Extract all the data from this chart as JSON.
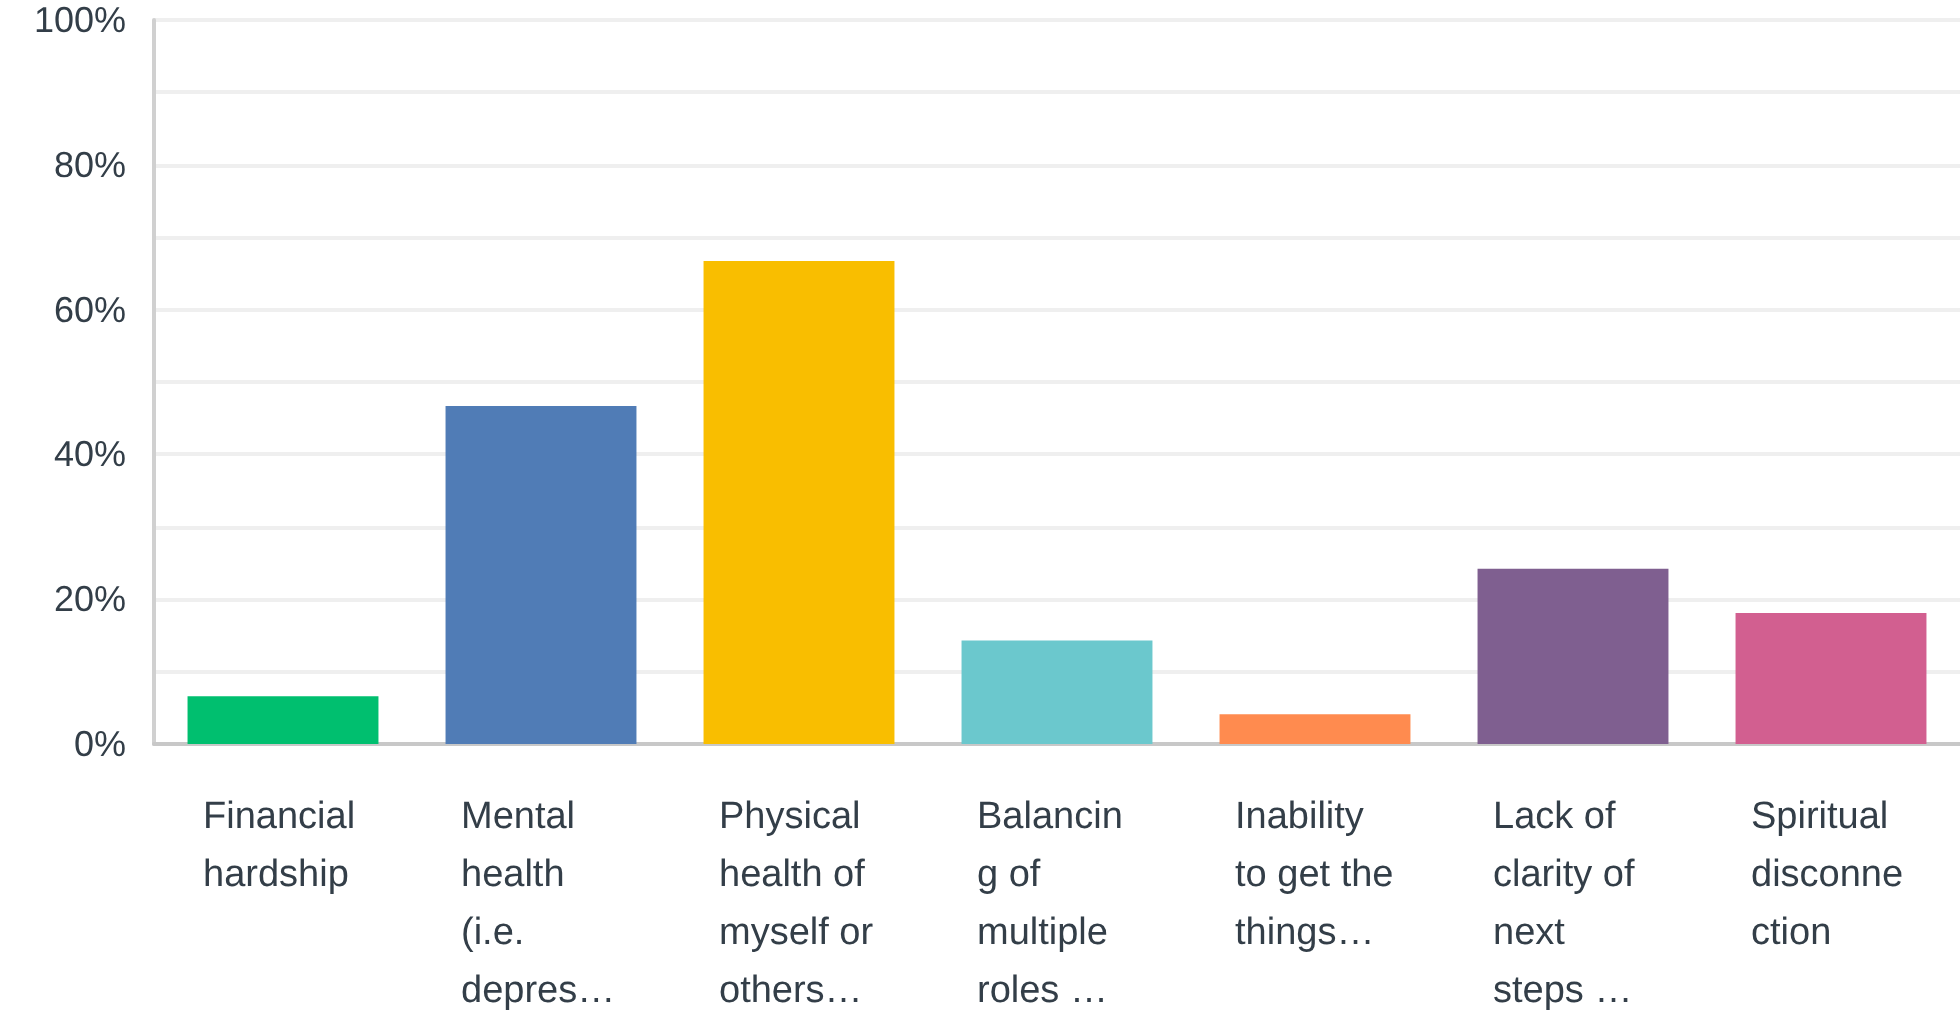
{
  "chart_data": {
    "type": "bar",
    "categories": [
      "Financial hardship",
      "Mental health (i.e. depres…",
      "Physical health of myself or others…",
      "Balancing of multiple roles …",
      "Inability to get the things…",
      "Lack of clarity of next steps …",
      "Spiritual disconnection"
    ],
    "values": [
      6.6,
      46.7,
      66.7,
      14.3,
      4.1,
      24.2,
      18.1
    ],
    "colors": [
      "#00bf6f",
      "#507cb6",
      "#f9be00",
      "#6bc8cd",
      "#ff8b4f",
      "#7f5f90",
      "#d25f90"
    ],
    "ylim": [
      0,
      100
    ],
    "yticks": [
      {
        "value": 0,
        "label": "0%"
      },
      {
        "value": 10,
        "label": null
      },
      {
        "value": 20,
        "label": "20%"
      },
      {
        "value": 30,
        "label": null
      },
      {
        "value": 40,
        "label": "40%"
      },
      {
        "value": 50,
        "label": null
      },
      {
        "value": 60,
        "label": "60%"
      },
      {
        "value": 70,
        "label": null
      },
      {
        "value": 80,
        "label": "80%"
      },
      {
        "value": 90,
        "label": null
      },
      {
        "value": 100,
        "label": "100%"
      }
    ],
    "grid": "y"
  }
}
